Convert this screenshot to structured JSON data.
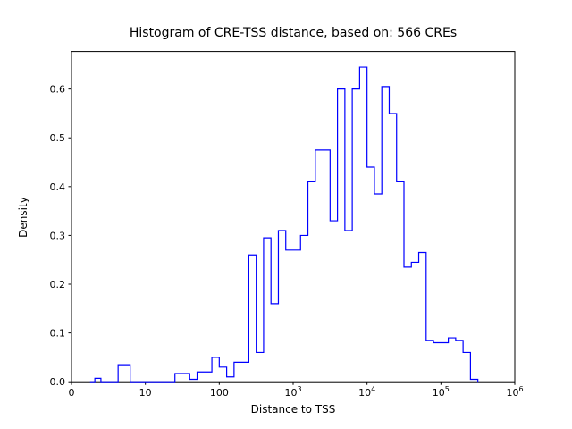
{
  "figure": {
    "background": "#ffffff"
  },
  "chart_data": {
    "type": "bar",
    "subtype": "histogram-step",
    "title": "Histogram of CRE-TSS distance, based on: 566 CREs",
    "xlabel": "Distance to TSS",
    "ylabel": "Density",
    "line_color": "#0000ff",
    "axis_color": "#000000",
    "x_scale": "symlog",
    "linthresh": 10,
    "xlim_units": [
      0,
      6
    ],
    "ylim": [
      0,
      0.677
    ],
    "grid": false,
    "legend": "none",
    "bins": {
      "edges_log10_start": 0.4,
      "edges_log10_step": 0.1,
      "densities": [
        0.0,
        0.007,
        0.0,
        0.0,
        0.035,
        0.0,
        0.0,
        0.0,
        0.0,
        0.0,
        0.017,
        0.017,
        0.005,
        0.02,
        0.02,
        0.05,
        0.03,
        0.01,
        0.04,
        0.04,
        0.26,
        0.06,
        0.295,
        0.16,
        0.31,
        0.27,
        0.27,
        0.3,
        0.41,
        0.475,
        0.475,
        0.33,
        0.6,
        0.31,
        0.6,
        0.645,
        0.44,
        0.385,
        0.605,
        0.55,
        0.41,
        0.235,
        0.245,
        0.265,
        0.085,
        0.08,
        0.08,
        0.09,
        0.085,
        0.06,
        0.005
      ]
    },
    "xticks": [
      {
        "label": "0",
        "exp": "",
        "value": 0
      },
      {
        "label": "10",
        "exp": "",
        "value": 10
      },
      {
        "label": "100",
        "exp": "",
        "value": 100
      },
      {
        "label": "10",
        "exp": "3",
        "value": 1000
      },
      {
        "label": "10",
        "exp": "4",
        "value": 10000
      },
      {
        "label": "10",
        "exp": "5",
        "value": 100000
      },
      {
        "label": "10",
        "exp": "6",
        "value": 1000000
      }
    ],
    "yticks": [
      {
        "label": "0.0",
        "value": 0.0
      },
      {
        "label": "0.1",
        "value": 0.1
      },
      {
        "label": "0.2",
        "value": 0.2
      },
      {
        "label": "0.3",
        "value": 0.3
      },
      {
        "label": "0.4",
        "value": 0.4
      },
      {
        "label": "0.5",
        "value": 0.5
      },
      {
        "label": "0.6",
        "value": 0.6
      }
    ]
  }
}
